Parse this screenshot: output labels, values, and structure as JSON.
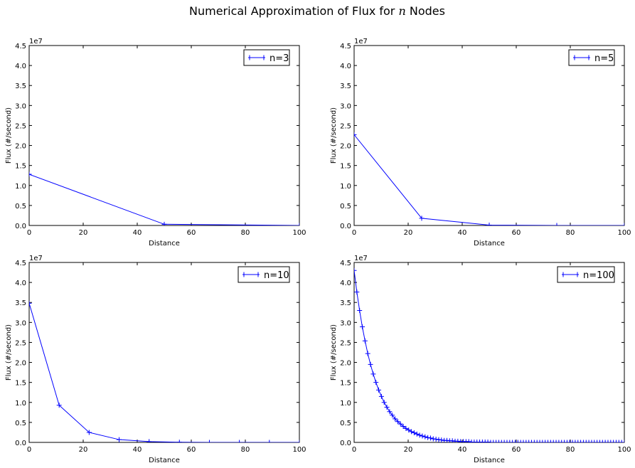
{
  "figure": {
    "title_prefix": "Numerical Approximation of Flux for ",
    "title_var": "n",
    "title_suffix": " Nodes"
  },
  "colors": {
    "line": "#0000ff",
    "axes": "#000000",
    "background": "#ffffff"
  },
  "chart_data": [
    {
      "type": "line",
      "xlabel": "Distance",
      "ylabel": "Flux (#/second)",
      "offset_label": "1e7",
      "xlim": [
        0,
        100
      ],
      "ylim": [
        0,
        4.5
      ],
      "x_ticks": [
        "0",
        "20",
        "40",
        "60",
        "80",
        "100"
      ],
      "y_ticks": [
        "0.0",
        "0.5",
        "1.0",
        "1.5",
        "2.0",
        "2.5",
        "3.0",
        "3.5",
        "4.0",
        "4.5"
      ],
      "grid": false,
      "legend_position": "top-right",
      "marker": "+",
      "series": [
        {
          "name": "n=3",
          "n": 3,
          "x": [
            0,
            50,
            100
          ],
          "y": [
            1.28,
            0.03,
            0.0
          ]
        }
      ]
    },
    {
      "type": "line",
      "xlabel": "Distance",
      "ylabel": "Flux (#/second)",
      "offset_label": "1e7",
      "xlim": [
        0,
        100
      ],
      "ylim": [
        0,
        4.5
      ],
      "x_ticks": [
        "0",
        "20",
        "40",
        "60",
        "80",
        "100"
      ],
      "y_ticks": [
        "0.0",
        "0.5",
        "1.0",
        "1.5",
        "2.0",
        "2.5",
        "3.0",
        "3.5",
        "4.0",
        "4.5"
      ],
      "grid": false,
      "legend_position": "top-right",
      "marker": "+",
      "series": [
        {
          "name": "n=5",
          "n": 5,
          "x": [
            0,
            25,
            50,
            75,
            100
          ],
          "y": [
            2.27,
            0.18,
            0.01,
            0.0,
            0.0
          ]
        }
      ]
    },
    {
      "type": "line",
      "xlabel": "Distance",
      "ylabel": "Flux (#/second)",
      "offset_label": "1e7",
      "xlim": [
        0,
        100
      ],
      "ylim": [
        0,
        4.5
      ],
      "x_ticks": [
        "0",
        "20",
        "40",
        "60",
        "80",
        "100"
      ],
      "y_ticks": [
        "0.0",
        "0.5",
        "1.0",
        "1.5",
        "2.0",
        "2.5",
        "3.0",
        "3.5",
        "4.0",
        "4.5"
      ],
      "grid": false,
      "legend_position": "top-right",
      "marker": "+",
      "series": [
        {
          "name": "n=10",
          "n": 10,
          "x": [
            0,
            11.1,
            22.2,
            33.3,
            44.4,
            55.6,
            66.7,
            77.8,
            88.9,
            100
          ],
          "y": [
            3.48,
            0.93,
            0.25,
            0.07,
            0.02,
            0.005,
            0.001,
            0.0,
            0.0,
            0.0
          ]
        }
      ]
    },
    {
      "type": "line",
      "xlabel": "Distance",
      "ylabel": "Flux (#/second)",
      "offset_label": "1e7",
      "xlim": [
        0,
        100
      ],
      "ylim": [
        0,
        4.5
      ],
      "x_ticks": [
        "0",
        "20",
        "40",
        "60",
        "80",
        "100"
      ],
      "y_ticks": [
        "0.0",
        "0.5",
        "1.0",
        "1.5",
        "2.0",
        "2.5",
        "3.0",
        "3.5",
        "4.0",
        "4.5"
      ],
      "grid": false,
      "legend_position": "top-right",
      "marker": "+",
      "series": [
        {
          "name": "n=100",
          "n": 100,
          "x": [
            0,
            1.01,
            2.02,
            3.03,
            4.04,
            5.05,
            6.06,
            7.07,
            8.08,
            9.09,
            10.1,
            11.11,
            12.12,
            13.13,
            14.14,
            15.15,
            16.16,
            17.17,
            18.18,
            19.19,
            20.2,
            21.21,
            22.22,
            23.23,
            24.24,
            25.25,
            26.26,
            27.27,
            28.28,
            29.29,
            30.3,
            31.31,
            32.32,
            33.33,
            34.34,
            35.35,
            36.36,
            37.37,
            38.38,
            39.39,
            40.4,
            41.41,
            42.42,
            43.43,
            44.44,
            45.45,
            46.46,
            47.47,
            48.48,
            49.49,
            50.51,
            51.52,
            52.53,
            53.54,
            54.55,
            55.56,
            56.57,
            57.58,
            58.59,
            59.6,
            60.61,
            61.62,
            62.63,
            63.64,
            64.65,
            65.66,
            66.67,
            67.68,
            68.69,
            69.7,
            70.71,
            71.72,
            72.73,
            73.74,
            74.75,
            75.76,
            76.77,
            77.78,
            78.79,
            79.8,
            80.81,
            81.82,
            82.83,
            83.84,
            84.85,
            85.86,
            86.87,
            87.88,
            88.89,
            89.9,
            90.91,
            91.92,
            92.93,
            93.94,
            94.95,
            95.96,
            96.97,
            97.98,
            98.99,
            100
          ],
          "y": [
            4.3,
            3.76,
            3.3,
            2.89,
            2.54,
            2.22,
            1.95,
            1.71,
            1.5,
            1.31,
            1.15,
            1.0,
            0.88,
            0.77,
            0.68,
            0.59,
            0.52,
            0.46,
            0.4,
            0.35,
            0.31,
            0.27,
            0.24,
            0.21,
            0.18,
            0.16,
            0.14,
            0.12,
            0.11,
            0.09,
            0.08,
            0.07,
            0.06,
            0.05,
            0.05,
            0.04,
            0.04,
            0.03,
            0.03,
            0.02,
            0.02,
            0.02,
            0.02,
            0.01,
            0.01,
            0.01,
            0.01,
            0.01,
            0.01,
            0.01,
            0.0,
            0.0,
            0.0,
            0.0,
            0.0,
            0.0,
            0.0,
            0.0,
            0.0,
            0.0,
            0.0,
            0.0,
            0.0,
            0.0,
            0.0,
            0.0,
            0.0,
            0.0,
            0.0,
            0.0,
            0.0,
            0.0,
            0.0,
            0.0,
            0.0,
            0.0,
            0.0,
            0.0,
            0.0,
            0.0,
            0.0,
            0.0,
            0.0,
            0.0,
            0.0,
            0.0,
            0.0,
            0.0,
            0.0,
            0.0,
            0.0,
            0.0,
            0.0,
            0.0,
            0.0,
            0.0,
            0.0,
            0.0,
            0.0,
            0.0
          ]
        }
      ]
    }
  ]
}
